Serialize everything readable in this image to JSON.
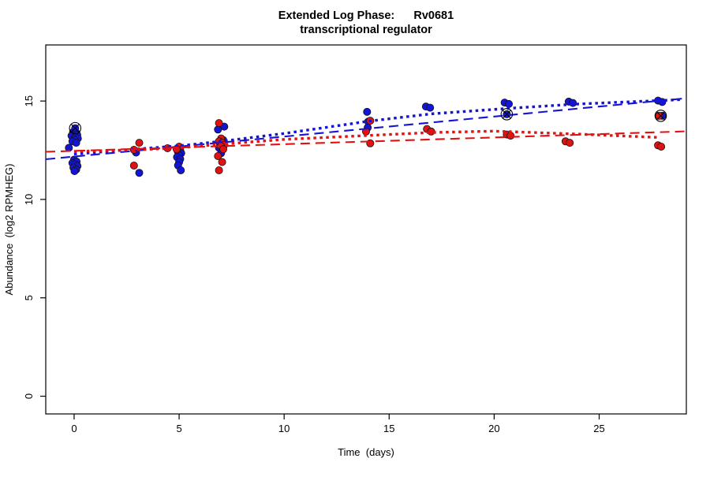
{
  "chart_data": {
    "type": "scatter",
    "title_line1": "Extended Log Phase:      Rv0681",
    "title_line2": "transcriptional regulator",
    "xlabel": "Time  (days)",
    "ylabel": "Abundance  (log2 RPMHEG)",
    "xlim": [
      -1.35,
      29.15
    ],
    "ylim": [
      -0.9,
      17.85
    ],
    "x_ticks": [
      0,
      5,
      10,
      15,
      20,
      25
    ],
    "y_ticks": [
      0,
      5,
      10,
      15
    ],
    "grid": "off",
    "legend": "none",
    "colors": {
      "blue_series": "#1414d6",
      "red_series": "#e01212",
      "axis": "#000000"
    },
    "series": [
      {
        "name": "blue-condition-points",
        "color": "#1414d6",
        "points": [
          [
            -0.05,
            13.42
          ],
          [
            0.12,
            13.36
          ],
          [
            0,
            13.3
          ],
          [
            0.15,
            13.27
          ],
          [
            -0.12,
            13.23
          ],
          [
            0.05,
            13.17
          ],
          [
            0.18,
            13.1
          ],
          [
            0.02,
            13.03
          ],
          [
            -0.08,
            12.95
          ],
          [
            0.1,
            12.88
          ],
          [
            -0.25,
            12.62
          ],
          [
            0,
            12.02
          ],
          [
            0.12,
            11.92
          ],
          [
            -0.08,
            11.85
          ],
          [
            0.05,
            11.78
          ],
          [
            0.16,
            11.7
          ],
          [
            -0.03,
            11.62
          ],
          [
            0.1,
            11.52
          ],
          [
            0.02,
            11.44
          ],
          [
            0.05,
            13.62
          ],
          [
            2.95,
            12.38
          ],
          [
            3.1,
            11.35
          ],
          [
            5.05,
            12.5
          ],
          [
            4.95,
            12.42
          ],
          [
            5.1,
            12.35
          ],
          [
            5,
            12.25
          ],
          [
            4.9,
            12.15
          ],
          [
            5.05,
            12.05
          ],
          [
            5,
            11.9
          ],
          [
            4.95,
            11.73
          ],
          [
            5.08,
            11.48
          ],
          [
            7.15,
            13.7
          ],
          [
            6.85,
            13.55
          ],
          [
            7.1,
            13.02
          ],
          [
            6.95,
            12.82
          ],
          [
            6.9,
            12.62
          ],
          [
            7,
            12.35
          ],
          [
            13.95,
            14.45
          ],
          [
            14,
            13.95
          ],
          [
            13.98,
            13.65
          ],
          [
            16.75,
            14.72
          ],
          [
            16.95,
            14.66
          ],
          [
            20.5,
            14.92
          ],
          [
            20.7,
            14.85
          ],
          [
            20.6,
            14.33
          ],
          [
            23.55,
            14.97
          ],
          [
            23.75,
            14.9
          ],
          [
            27.8,
            15.02
          ],
          [
            28,
            14.95
          ],
          [
            28,
            14.25
          ]
        ]
      },
      {
        "name": "red-condition-points",
        "color": "#e01212",
        "points": [
          [
            3.1,
            12.88
          ],
          [
            2.85,
            12.52
          ],
          [
            2.85,
            11.72
          ],
          [
            4.45,
            12.6
          ],
          [
            5,
            12.68
          ],
          [
            4.88,
            12.55
          ],
          [
            6.9,
            13.88
          ],
          [
            7,
            13.1
          ],
          [
            6.9,
            12.95
          ],
          [
            7.05,
            12.88
          ],
          [
            7.15,
            12.77
          ],
          [
            7,
            12.7
          ],
          [
            7.1,
            12.55
          ],
          [
            6.85,
            12.2
          ],
          [
            7.05,
            11.9
          ],
          [
            6.9,
            11.48
          ],
          [
            14.1,
            14
          ],
          [
            13.9,
            13.45
          ],
          [
            14.1,
            12.85
          ],
          [
            16.8,
            13.58
          ],
          [
            17,
            13.45
          ],
          [
            20.6,
            13.3
          ],
          [
            20.78,
            13.24
          ],
          [
            23.4,
            12.95
          ],
          [
            23.6,
            12.88
          ],
          [
            27.8,
            12.75
          ],
          [
            27.95,
            12.68
          ],
          [
            27.85,
            14.25
          ]
        ]
      }
    ],
    "flagged_points": [
      [
        0.05,
        13.62
      ],
      [
        20.6,
        14.33
      ],
      [
        27.93,
        14.25
      ]
    ],
    "lines": [
      {
        "name": "blue-linear-fit-line",
        "color": "#1414d6",
        "style": "dashed",
        "points": [
          [
            -1.35,
            12.04
          ],
          [
            28.95,
            15.12
          ]
        ]
      },
      {
        "name": "blue-lowess-fit-line",
        "color": "#1414d6",
        "style": "dotted",
        "points": [
          [
            0,
            12.3
          ],
          [
            3,
            12.56
          ],
          [
            5,
            12.72
          ],
          [
            7,
            12.95
          ],
          [
            10,
            13.35
          ],
          [
            14,
            13.97
          ],
          [
            17,
            14.35
          ],
          [
            21,
            14.65
          ],
          [
            24,
            14.85
          ],
          [
            28.9,
            15.07
          ]
        ]
      },
      {
        "name": "red-linear-fit-line",
        "color": "#e01212",
        "style": "dashed",
        "points": [
          [
            -1.35,
            12.42
          ],
          [
            29.1,
            13.46
          ]
        ]
      },
      {
        "name": "red-lowess-fit-line",
        "color": "#e01212",
        "style": "dotted",
        "points": [
          [
            0,
            12.44
          ],
          [
            3,
            12.52
          ],
          [
            5,
            12.62
          ],
          [
            7,
            12.8
          ],
          [
            10,
            13.05
          ],
          [
            14,
            13.25
          ],
          [
            17,
            13.4
          ],
          [
            20,
            13.47
          ],
          [
            24,
            13.32
          ],
          [
            27.8,
            13.15
          ]
        ]
      }
    ]
  }
}
